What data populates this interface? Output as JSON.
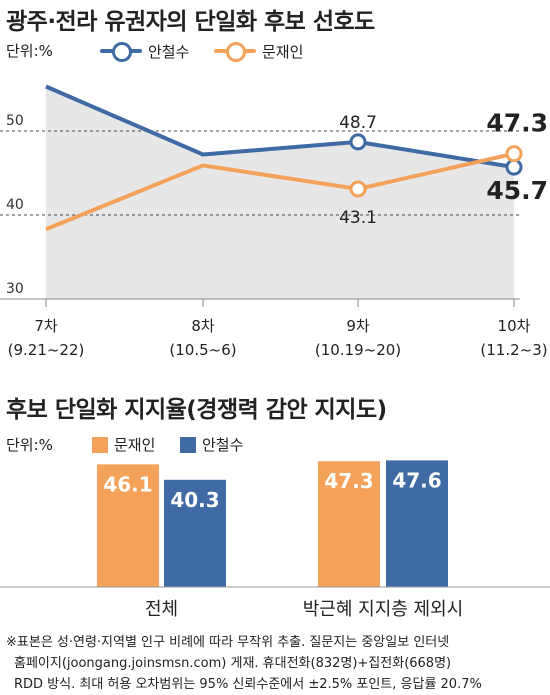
{
  "chart_data": [
    {
      "type": "line",
      "title": "광주·전라 유권자의 단일화 후보 선호도",
      "unit": "단위:%",
      "ylim": [
        30,
        58
      ],
      "yticks": [
        "50",
        "40",
        "30"
      ],
      "categories": [
        {
          "name": "7차",
          "period": "(9.21~22)"
        },
        {
          "name": "8차",
          "period": "(10.5~6)"
        },
        {
          "name": "9차",
          "period": "(10.19~20)"
        },
        {
          "name": "10차",
          "period": "(11.2~3)"
        }
      ],
      "legend_position": "top",
      "series": [
        {
          "name": "안철수",
          "color": "#3f6aa3",
          "values": [
            55.3,
            47.2,
            48.7,
            45.7
          ],
          "labels": [
            {
              "index": 2,
              "text": "48.7"
            },
            {
              "index": 3,
              "text": "45.7"
            }
          ]
        },
        {
          "name": "문재인",
          "color": "#f4a15a",
          "values": [
            38.3,
            45.9,
            43.1,
            47.3
          ],
          "labels": [
            {
              "index": 2,
              "text": "43.1"
            },
            {
              "index": 3,
              "text": "47.3"
            }
          ]
        }
      ]
    },
    {
      "type": "bar",
      "title": "후보 단일화 지지율(경쟁력 감안 지지도)",
      "unit": "단위:%",
      "ylim": [
        0,
        55
      ],
      "categories": [
        "전체",
        "박근혜 지지층 제외시"
      ],
      "legend_position": "top",
      "series": [
        {
          "name": "문재인",
          "color": "#f4a15a",
          "values": [
            46.1,
            47.3
          ],
          "labels": [
            "46.1",
            "47.3"
          ]
        },
        {
          "name": "안철수",
          "color": "#3f6aa3",
          "values": [
            40.3,
            47.6
          ],
          "labels": [
            "40.3",
            "47.6"
          ]
        }
      ]
    }
  ],
  "footnote": {
    "line1": "※표본은 성·연령·지역별 인구 비례에 따라 무작위 추출. 질문지는 중앙일보 인터넷",
    "line2": "홈페이지(joongang.joinsmsn.com) 게재. 휴대전화(832명)+집전화(668명)",
    "line3": "RDD 방식. 최대 허용 오차범위는 95% 신뢰수준에서 ±2.5% 포인트, 응답률 20.7%"
  }
}
